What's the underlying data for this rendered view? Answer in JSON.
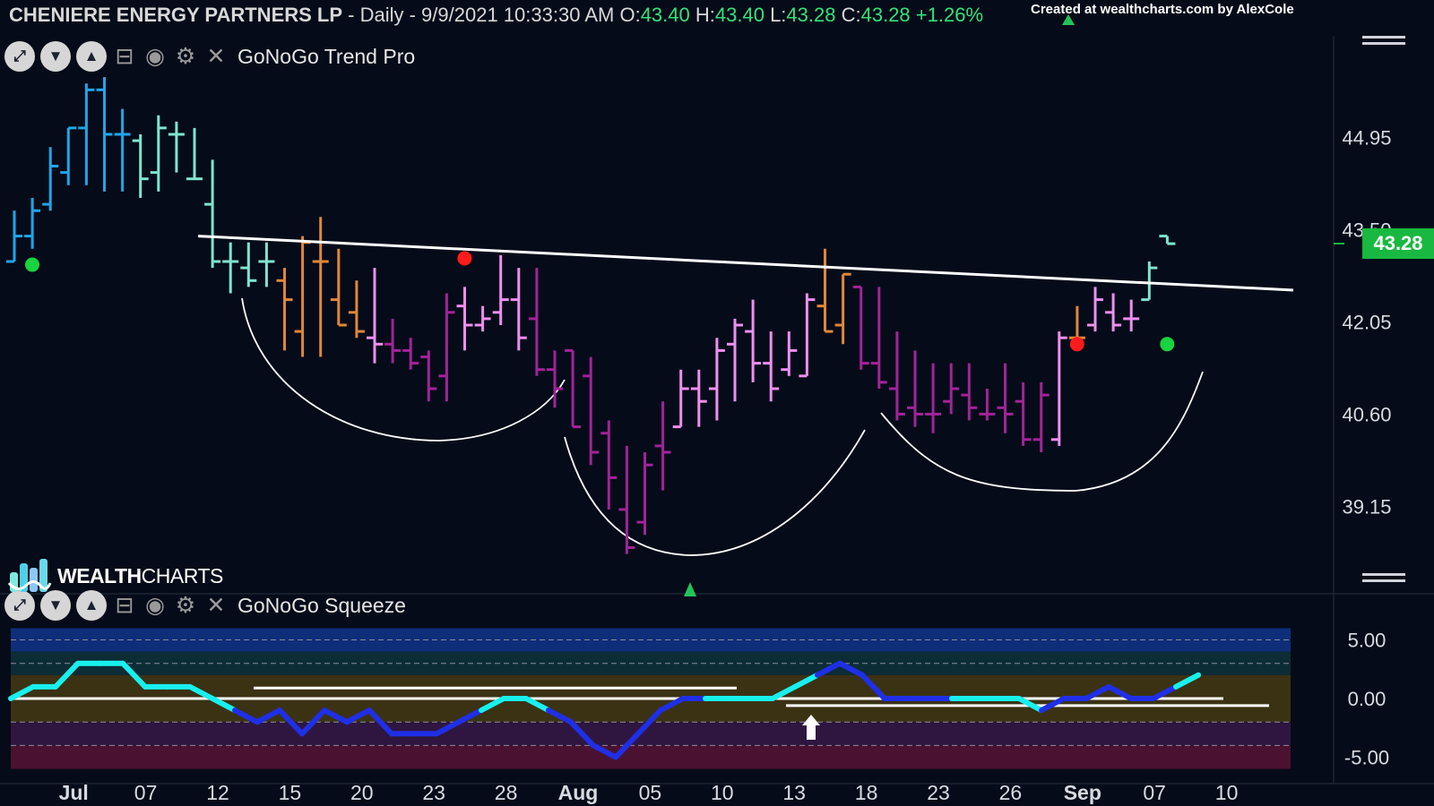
{
  "header": {
    "symbol": "CHENIERE ENERGY PARTNERS LP",
    "period": "- Daily - 9/9/2021 10:33:30 AM",
    "o_label": "O:",
    "o_value": "43.40",
    "h_label": "H:",
    "h_value": "43.40",
    "l_label": "L:",
    "l_value": "43.28",
    "c_label": "C:",
    "c_value": "43.28",
    "change": "+1.26%",
    "credit": "Created at wealthcharts.com by AlexCole"
  },
  "top_panel": {
    "indicator_name": "GoNoGo Trend Pro"
  },
  "bottom_panel": {
    "indicator_name": "GoNoGo Squeeze"
  },
  "logo": {
    "text_bold": "WEALTH",
    "text_thin": "CHARTS"
  },
  "colors": {
    "background": "#050b18",
    "go_strong": "#1fa6ea",
    "go_weak": "#7fe5cf",
    "nogo_amber": "#e0873a",
    "nogo_pink": "#ef8ef0",
    "nogo_strong": "#a2239a",
    "price_badge": "#19b840",
    "squeeze_line": "#18f0ee",
    "squeeze_blue": "#1f2fe6"
  },
  "chart_data": [
    {
      "type": "ohlc",
      "title": "CHENIERE ENERGY PARTNERS LP",
      "y_ticks": [
        "44.95",
        "43.50",
        "42.05",
        "40.60",
        "39.15"
      ],
      "x_ticks": [
        "Jul",
        "07",
        "12",
        "15",
        "20",
        "23",
        "28",
        "Aug",
        "05",
        "10",
        "13",
        "18",
        "23",
        "26",
        "Sep",
        "07",
        "10"
      ],
      "last_price": "43.28",
      "ylim": [
        37.9,
        46.6
      ],
      "bars": [
        {
          "o": 43.0,
          "h": 43.8,
          "l": 43.0,
          "c": 43.4,
          "state": "go_strong"
        },
        {
          "o": 43.4,
          "h": 44.0,
          "l": 43.2,
          "c": 43.8,
          "state": "go_strong"
        },
        {
          "o": 43.9,
          "h": 44.8,
          "l": 43.8,
          "c": 44.5,
          "state": "go_strong"
        },
        {
          "o": 44.4,
          "h": 45.1,
          "l": 44.2,
          "c": 45.1,
          "state": "go_strong"
        },
        {
          "o": 45.1,
          "h": 45.8,
          "l": 44.2,
          "c": 45.7,
          "state": "go_strong"
        },
        {
          "o": 45.7,
          "h": 45.9,
          "l": 44.1,
          "c": 45.0,
          "state": "go_strong"
        },
        {
          "o": 45.0,
          "h": 45.4,
          "l": 44.1,
          "c": 45.0,
          "state": "go_strong"
        },
        {
          "o": 44.9,
          "h": 45.0,
          "l": 44.0,
          "c": 44.3,
          "state": "go_weak"
        },
        {
          "o": 44.4,
          "h": 45.3,
          "l": 44.1,
          "c": 45.1,
          "state": "go_weak"
        },
        {
          "o": 45.0,
          "h": 45.2,
          "l": 44.4,
          "c": 45.0,
          "state": "go_weak"
        },
        {
          "o": 44.3,
          "h": 45.1,
          "l": 44.3,
          "c": 44.3,
          "state": "go_weak"
        },
        {
          "o": 43.9,
          "h": 44.6,
          "l": 42.9,
          "c": 43.0,
          "state": "go_weak"
        },
        {
          "o": 43.0,
          "h": 43.3,
          "l": 42.5,
          "c": 43.0,
          "state": "go_weak"
        },
        {
          "o": 42.9,
          "h": 43.3,
          "l": 42.6,
          "c": 42.7,
          "state": "go_weak"
        },
        {
          "o": 43.0,
          "h": 43.3,
          "l": 42.6,
          "c": 43.0,
          "state": "go_weak"
        },
        {
          "o": 42.7,
          "h": 42.9,
          "l": 41.6,
          "c": 42.4,
          "state": "nogo_amber"
        },
        {
          "o": 41.9,
          "h": 43.4,
          "l": 41.5,
          "c": 43.3,
          "state": "nogo_amber"
        },
        {
          "o": 43.0,
          "h": 43.7,
          "l": 41.5,
          "c": 43.0,
          "state": "nogo_amber"
        },
        {
          "o": 42.4,
          "h": 43.2,
          "l": 42.0,
          "c": 42.0,
          "state": "nogo_amber"
        },
        {
          "o": 42.2,
          "h": 42.7,
          "l": 41.8,
          "c": 41.9,
          "state": "nogo_amber"
        },
        {
          "o": 41.8,
          "h": 42.9,
          "l": 41.4,
          "c": 41.7,
          "state": "nogo_pink"
        },
        {
          "o": 41.7,
          "h": 42.1,
          "l": 41.4,
          "c": 41.6,
          "state": "nogo_strong"
        },
        {
          "o": 41.6,
          "h": 41.8,
          "l": 41.3,
          "c": 41.4,
          "state": "nogo_strong"
        },
        {
          "o": 41.5,
          "h": 41.6,
          "l": 40.8,
          "c": 41.0,
          "state": "nogo_strong"
        },
        {
          "o": 41.2,
          "h": 42.5,
          "l": 40.8,
          "c": 42.2,
          "state": "nogo_strong"
        },
        {
          "o": 42.3,
          "h": 42.6,
          "l": 41.6,
          "c": 42.0,
          "state": "nogo_pink"
        },
        {
          "o": 42.0,
          "h": 42.3,
          "l": 41.9,
          "c": 42.1,
          "state": "nogo_pink"
        },
        {
          "o": 42.2,
          "h": 43.1,
          "l": 42.0,
          "c": 42.4,
          "state": "nogo_pink"
        },
        {
          "o": 42.4,
          "h": 42.9,
          "l": 41.6,
          "c": 41.8,
          "state": "nogo_pink"
        },
        {
          "o": 42.1,
          "h": 42.9,
          "l": 41.2,
          "c": 41.3,
          "state": "nogo_strong"
        },
        {
          "o": 41.3,
          "h": 41.6,
          "l": 40.7,
          "c": 41.0,
          "state": "nogo_strong"
        },
        {
          "o": 41.6,
          "h": 41.6,
          "l": 40.4,
          "c": 40.4,
          "state": "nogo_strong"
        },
        {
          "o": 41.2,
          "h": 41.5,
          "l": 39.8,
          "c": 40.0,
          "state": "nogo_strong"
        },
        {
          "o": 40.3,
          "h": 40.5,
          "l": 39.1,
          "c": 39.6,
          "state": "nogo_strong"
        },
        {
          "o": 39.1,
          "h": 40.1,
          "l": 38.4,
          "c": 38.5,
          "state": "nogo_strong"
        },
        {
          "o": 38.9,
          "h": 40.0,
          "l": 38.7,
          "c": 39.8,
          "state": "nogo_strong"
        },
        {
          "o": 40.1,
          "h": 40.8,
          "l": 39.4,
          "c": 40.0,
          "state": "nogo_strong"
        },
        {
          "o": 40.4,
          "h": 41.3,
          "l": 40.4,
          "c": 41.0,
          "state": "nogo_pink"
        },
        {
          "o": 41.0,
          "h": 41.3,
          "l": 40.4,
          "c": 40.8,
          "state": "nogo_pink"
        },
        {
          "o": 41.0,
          "h": 41.8,
          "l": 40.5,
          "c": 41.6,
          "state": "nogo_pink"
        },
        {
          "o": 41.7,
          "h": 42.1,
          "l": 40.8,
          "c": 42.0,
          "state": "nogo_pink"
        },
        {
          "o": 41.9,
          "h": 42.4,
          "l": 41.1,
          "c": 41.4,
          "state": "nogo_pink"
        },
        {
          "o": 41.4,
          "h": 41.9,
          "l": 40.8,
          "c": 41.0,
          "state": "nogo_pink"
        },
        {
          "o": 41.3,
          "h": 41.9,
          "l": 41.2,
          "c": 41.6,
          "state": "nogo_pink"
        },
        {
          "o": 41.2,
          "h": 42.5,
          "l": 41.2,
          "c": 42.4,
          "state": "nogo_pink"
        },
        {
          "o": 42.3,
          "h": 43.2,
          "l": 41.9,
          "c": 41.9,
          "state": "nogo_amber"
        },
        {
          "o": 42.0,
          "h": 42.8,
          "l": 41.7,
          "c": 42.8,
          "state": "nogo_amber"
        },
        {
          "o": 42.6,
          "h": 42.6,
          "l": 41.3,
          "c": 41.4,
          "state": "nogo_strong"
        },
        {
          "o": 41.4,
          "h": 42.6,
          "l": 41.0,
          "c": 41.1,
          "state": "nogo_strong"
        },
        {
          "o": 41.0,
          "h": 41.9,
          "l": 40.5,
          "c": 40.6,
          "state": "nogo_strong"
        },
        {
          "o": 40.7,
          "h": 41.6,
          "l": 40.4,
          "c": 40.6,
          "state": "nogo_strong"
        },
        {
          "o": 40.6,
          "h": 41.4,
          "l": 40.3,
          "c": 40.6,
          "state": "nogo_strong"
        },
        {
          "o": 40.8,
          "h": 41.4,
          "l": 40.6,
          "c": 41.0,
          "state": "nogo_strong"
        },
        {
          "o": 40.9,
          "h": 41.4,
          "l": 40.5,
          "c": 40.7,
          "state": "nogo_strong"
        },
        {
          "o": 40.6,
          "h": 41.0,
          "l": 40.5,
          "c": 40.6,
          "state": "nogo_strong"
        },
        {
          "o": 40.7,
          "h": 41.4,
          "l": 40.3,
          "c": 40.6,
          "state": "nogo_strong"
        },
        {
          "o": 40.8,
          "h": 41.1,
          "l": 40.1,
          "c": 40.2,
          "state": "nogo_strong"
        },
        {
          "o": 40.2,
          "h": 41.1,
          "l": 40.0,
          "c": 40.9,
          "state": "nogo_strong"
        },
        {
          "o": 40.2,
          "h": 41.9,
          "l": 40.1,
          "c": 41.8,
          "state": "nogo_pink"
        },
        {
          "o": 41.8,
          "h": 42.3,
          "l": 41.7,
          "c": 41.8,
          "state": "nogo_amber"
        },
        {
          "o": 42.0,
          "h": 42.6,
          "l": 41.9,
          "c": 42.4,
          "state": "nogo_pink"
        },
        {
          "o": 42.2,
          "h": 42.5,
          "l": 41.9,
          "c": 42.0,
          "state": "nogo_pink"
        },
        {
          "o": 42.1,
          "h": 42.4,
          "l": 41.9,
          "c": 42.1,
          "state": "nogo_pink"
        },
        {
          "o": 42.4,
          "h": 43.0,
          "l": 42.4,
          "c": 42.9,
          "state": "go_weak"
        },
        {
          "o": 43.4,
          "h": 43.4,
          "l": 43.28,
          "c": 43.28,
          "state": "go_weak"
        }
      ],
      "markers": [
        {
          "bar": 0,
          "price": 42.95,
          "color": "#19d33f",
          "kind": "go-dot"
        },
        {
          "bar": 24,
          "price": 43.05,
          "color": "#ff1b1b",
          "kind": "nogo-dot"
        },
        {
          "bar": 58,
          "price": 41.7,
          "color": "#ff1b1b",
          "kind": "nogo-dot"
        },
        {
          "bar": 63,
          "price": 41.7,
          "color": "#19d33f",
          "kind": "go-dot"
        }
      ],
      "neckline": {
        "from": {
          "bar": 10,
          "price": 43.4
        },
        "to": {
          "bar": 70,
          "price": 42.55
        }
      }
    },
    {
      "type": "line",
      "title": "GoNoGo Squeeze",
      "y_ticks": [
        "5.00",
        "0.00",
        "-5.00"
      ],
      "ylim": [
        -6.0,
        6.0
      ],
      "values": [
        0.0,
        1.0,
        1.0,
        3.0,
        3.0,
        3.0,
        1.0,
        1.0,
        1.0,
        0.0,
        -1.0,
        -2.0,
        -1.0,
        -3.0,
        -1.0,
        -2.0,
        -1.0,
        -3.0,
        -3.0,
        -3.0,
        -2.0,
        -1.0,
        0.0,
        0.0,
        -1.0,
        -2.0,
        -4.0,
        -5.0,
        -3.0,
        -1.0,
        0.0,
        0.0,
        0.0,
        0.0,
        0.0,
        1.0,
        2.0,
        3.0,
        2.0,
        0.0,
        0.0,
        0.0,
        0.0,
        0.0,
        0.0,
        0.0,
        -1.0,
        0.0,
        0.0,
        1.0,
        0.0,
        0.0,
        1.0,
        2.0
      ]
    }
  ]
}
